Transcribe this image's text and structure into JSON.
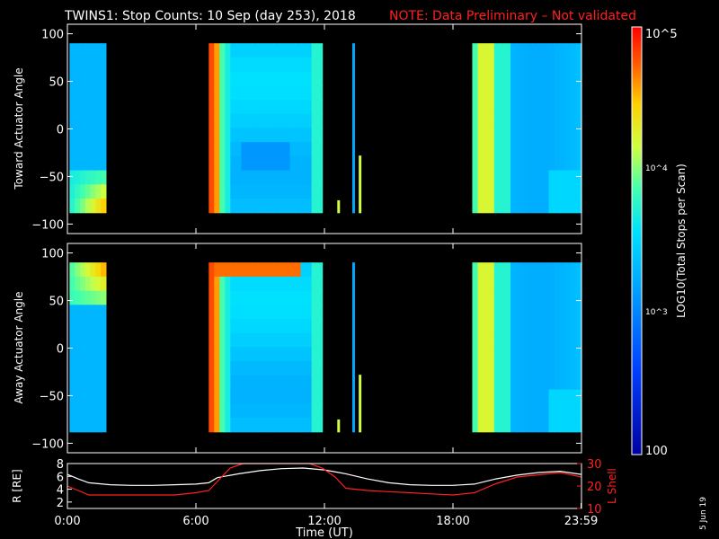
{
  "header": {
    "title": "TWINS1: Stop Counts: 10 Sep (day 253), 2018",
    "note": "NOTE: Data Preliminary – Not validated"
  },
  "footer": {
    "date_stamp": "5 Jun 19"
  },
  "colorbar": {
    "label": "LOG10(Total Stops per Scan)",
    "ticks": [
      "10^5",
      "10^4",
      "10^3",
      "100"
    ],
    "range": [
      100,
      100000
    ]
  },
  "chart_data": [
    {
      "type": "heatmap",
      "panel": "toward",
      "ylabel": "Toward Actuator Angle",
      "yticks": [
        "100",
        "50",
        "0",
        "−50",
        "−100"
      ],
      "ylim": [
        -110,
        110
      ],
      "xlim": [
        0,
        24
      ],
      "angle_range": [
        -88,
        90
      ],
      "data_intervals_hours": [
        [
          0.1,
          1.8
        ],
        [
          6.6,
          11.9
        ],
        [
          12.6,
          12.7
        ],
        [
          13.3,
          13.4
        ],
        [
          13.6,
          13.7
        ],
        [
          18.9,
          24.0
        ]
      ],
      "color_scale": "log",
      "vrange": [
        100,
        100000
      ]
    },
    {
      "type": "heatmap",
      "panel": "away",
      "ylabel": "Away Actuator Angle",
      "yticks": [
        "100",
        "50",
        "0",
        "−50",
        "−100"
      ],
      "ylim": [
        -110,
        110
      ],
      "xlim": [
        0,
        24
      ],
      "angle_range": [
        -88,
        90
      ],
      "data_intervals_hours": [
        [
          0.1,
          1.8
        ],
        [
          6.6,
          11.9
        ],
        [
          12.6,
          12.7
        ],
        [
          13.3,
          13.4
        ],
        [
          13.6,
          13.7
        ],
        [
          18.9,
          24.0
        ]
      ],
      "color_scale": "log",
      "vrange": [
        100,
        100000
      ]
    },
    {
      "type": "line",
      "panel": "orbit",
      "xlabel": "Time (UT)",
      "xticks": [
        "0:00",
        "6:00",
        "12:00",
        "18:00",
        "23:59"
      ],
      "ylabel_left": "R [RE]",
      "ylabel_right": "L Shell",
      "yticks_left": [
        "8",
        "6",
        "4",
        "2"
      ],
      "yticks_right": [
        "30",
        "20",
        "10"
      ],
      "ylim_left": [
        1,
        8
      ],
      "ylim_right": [
        10,
        30
      ],
      "xlim": [
        0,
        24
      ],
      "series": [
        {
          "axis": "left",
          "color": "#ffffff",
          "x": [
            0,
            0.5,
            1,
            2,
            3,
            4,
            5,
            6,
            6.6,
            7,
            8,
            9,
            10,
            11,
            12,
            13,
            14,
            15,
            16,
            17,
            18,
            19,
            20,
            21,
            22,
            23,
            24
          ],
          "y": [
            6.3,
            5.6,
            5.0,
            4.7,
            4.6,
            4.6,
            4.7,
            4.8,
            5.0,
            5.8,
            6.4,
            6.9,
            7.2,
            7.3,
            7.0,
            6.4,
            5.6,
            5.0,
            4.7,
            4.6,
            4.6,
            4.8,
            5.6,
            6.2,
            6.6,
            6.8,
            6.3
          ]
        },
        {
          "axis": "right",
          "color": "#ff2020",
          "x": [
            0,
            0.5,
            1,
            2,
            3,
            4,
            5,
            6,
            6.6,
            7,
            7.6,
            8.2,
            11.3,
            11.9,
            12.5,
            13,
            14,
            15,
            16,
            17,
            18,
            19,
            20,
            21,
            22,
            23,
            24
          ],
          "y": [
            20,
            18,
            16,
            16,
            16,
            16,
            16,
            17,
            18,
            22,
            28,
            31,
            31,
            28,
            24,
            19,
            18,
            17.5,
            17,
            16.5,
            16,
            17,
            21,
            24,
            25,
            26,
            24
          ]
        }
      ]
    }
  ]
}
